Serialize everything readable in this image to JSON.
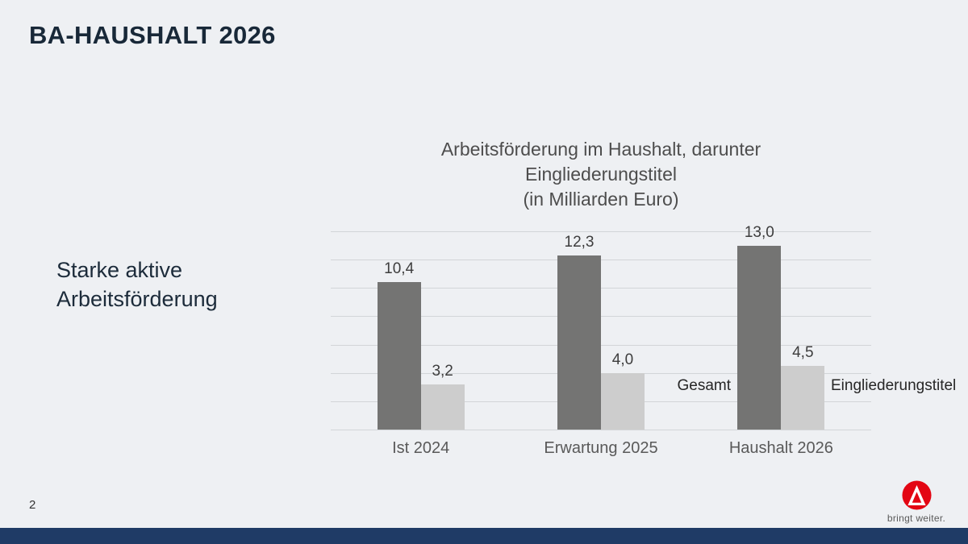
{
  "slide": {
    "title": "BA-HAUSHALT 2026",
    "left_text": "Starke aktive Arbeitsförderung",
    "page_number": "2",
    "logo_tagline": "bringt weiter."
  },
  "colors": {
    "background": "#eef0f3",
    "heading": "#182838",
    "bottom_bar": "#1f3b66",
    "brand_red": "#e30613"
  },
  "chart_data": {
    "type": "bar",
    "title_lines": [
      "Arbeitsförderung im Haushalt, darunter",
      "Eingliederungstitel",
      "(in Milliarden Euro)"
    ],
    "categories": [
      "Ist 2024",
      "Erwartung 2025",
      "Haushalt 2026"
    ],
    "series": [
      {
        "name": "Gesamt",
        "values": [
          10.4,
          12.3,
          13.0
        ],
        "color": "#747473"
      },
      {
        "name": "Eingliederungstitel",
        "values": [
          3.2,
          4.0,
          4.5
        ],
        "color": "#cdcdcd"
      }
    ],
    "value_labels": [
      [
        "10,4",
        "12,3",
        "13,0"
      ],
      [
        "3,2",
        "4,0",
        "4,5"
      ]
    ],
    "xlabel": "",
    "ylabel": "",
    "ylim": [
      0,
      14
    ],
    "gridline_step": 2,
    "grid": true,
    "legend_position": "inline beside Haushalt 2026 bars"
  }
}
